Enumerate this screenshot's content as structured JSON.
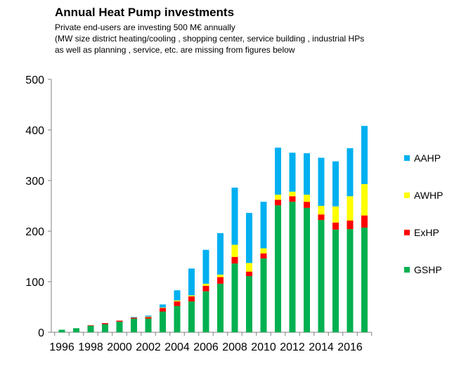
{
  "chart_data": {
    "type": "bar",
    "stacked": true,
    "title": "Annual Heat Pump investments",
    "subtitle_lines": [
      "Private end-users are investing 500 M€ annually",
      "(MW size district heating/cooling  , shopping center, service building , industrial HPs",
      "as well as planning , service, etc. are missing from figures below"
    ],
    "xlabel": "",
    "ylabel": "",
    "ylim": [
      0,
      500
    ],
    "yticks": [
      0,
      100,
      200,
      300,
      400,
      500
    ],
    "grid": false,
    "legend_position": "right",
    "categories": [
      1996,
      1997,
      1998,
      1999,
      2000,
      2001,
      2002,
      2003,
      2004,
      2005,
      2006,
      2007,
      2008,
      2009,
      2010,
      2011,
      2012,
      2013,
      2014,
      2015,
      2016,
      2017
    ],
    "xtick_labels": [
      "1996",
      "1998",
      "2000",
      "2002",
      "2004",
      "2006",
      "2008",
      "2010",
      "2012",
      "2014",
      "2016"
    ],
    "series": [
      {
        "name": "GSHP",
        "color": "#00b050",
        "values": [
          5,
          8,
          13,
          16,
          21,
          27,
          27,
          41,
          52,
          61,
          81,
          96,
          136,
          111,
          146,
          251,
          258,
          246,
          222,
          203,
          204,
          207
        ]
      },
      {
        "name": "ExHP",
        "color": "#ff0000",
        "values": [
          0,
          0,
          1,
          2,
          2,
          2,
          3,
          7,
          9,
          10,
          11,
          13,
          13,
          9,
          10,
          11,
          11,
          12,
          11,
          14,
          17,
          24
        ]
      },
      {
        "name": "AWHP",
        "color": "#ffff00",
        "values": [
          0,
          0,
          0,
          0,
          0,
          0,
          1,
          1,
          2,
          2,
          4,
          5,
          24,
          17,
          10,
          10,
          9,
          14,
          17,
          32,
          48,
          62
        ]
      },
      {
        "name": "AAHP",
        "color": "#00b0f0",
        "values": [
          0,
          0,
          0,
          0,
          0,
          1,
          2,
          6,
          20,
          53,
          67,
          82,
          113,
          99,
          92,
          93,
          77,
          82,
          95,
          89,
          95,
          115
        ]
      }
    ],
    "legend_order": [
      "AAHP",
      "AWHP",
      "ExHP",
      "GSHP"
    ]
  }
}
